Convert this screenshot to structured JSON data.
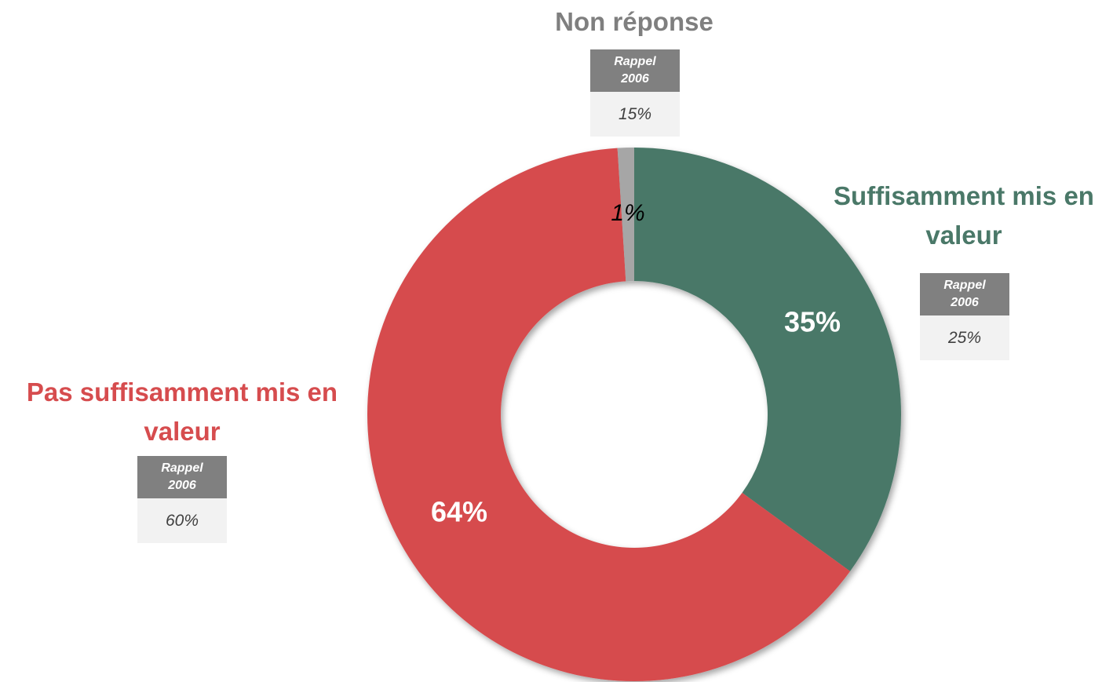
{
  "chart_data": {
    "type": "donut",
    "categories": [
      "Suffisamment mis en valeur",
      "Pas suffisamment mis en valeur",
      "Non réponse"
    ],
    "values": [
      35,
      64,
      1
    ],
    "value_labels": [
      "35%",
      "64%",
      "1%"
    ],
    "colors": [
      "#4a7868",
      "#d64c4e",
      "#a6a6a6"
    ],
    "recall_label": "Rappel 2006",
    "recall_value_labels": [
      "25%",
      "60%",
      "15%"
    ]
  }
}
